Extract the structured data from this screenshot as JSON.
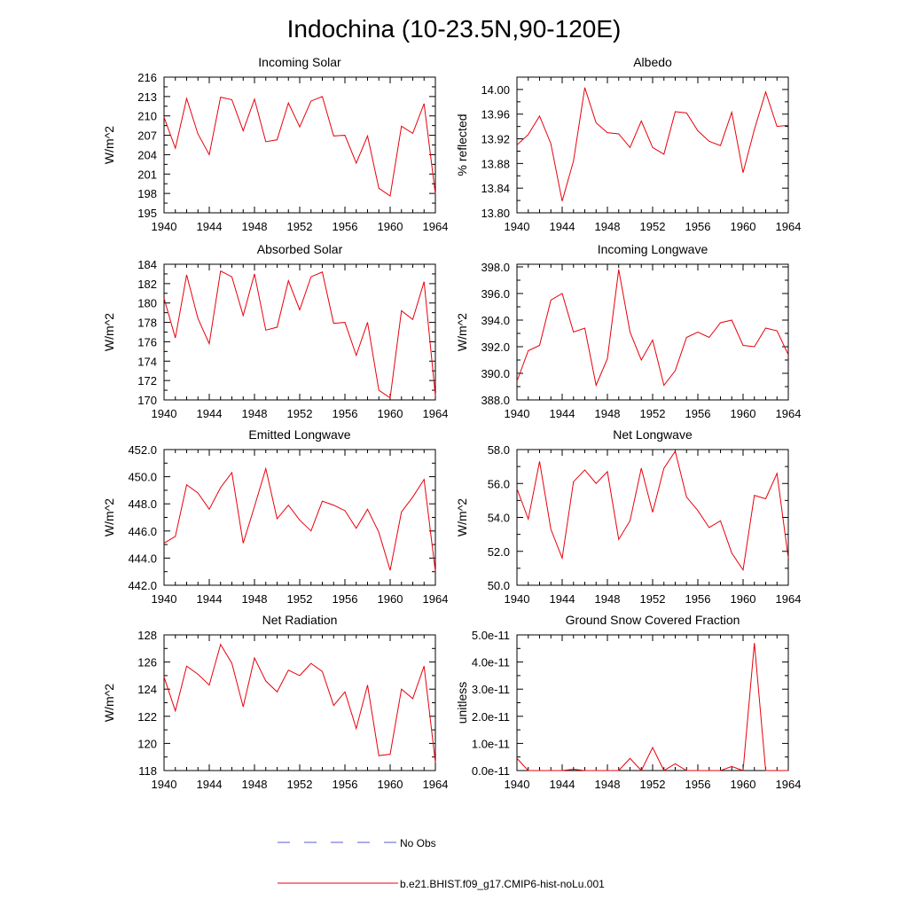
{
  "figure": {
    "title": "Indochina (10-23.5N,90-120E)",
    "legend": [
      {
        "label": "No Obs",
        "color": "#5b5bd6",
        "dashed": true
      },
      {
        "label": "b.e21.BHIST.f09_g17.CMIP6-hist-noLu.001",
        "color": "#e8000b",
        "dashed": false
      }
    ]
  },
  "chart_data": [
    {
      "type": "line",
      "title": "Incoming Solar",
      "ylabel": "W/m^2",
      "xlim": [
        1940,
        1964
      ],
      "ylim": [
        195,
        216
      ],
      "xticks": [
        "1940",
        "1944",
        "1948",
        "1952",
        "1956",
        "1960",
        "1964"
      ],
      "yticks": [
        "195",
        "198",
        "201",
        "204",
        "207",
        "210",
        "213",
        "216"
      ],
      "series": [
        {
          "color": "#e8000b",
          "x": [
            1940,
            1941,
            1942,
            1943,
            1944,
            1945,
            1946,
            1947,
            1948,
            1949,
            1950,
            1951,
            1952,
            1953,
            1954,
            1955,
            1956,
            1957,
            1958,
            1959,
            1960,
            1961,
            1962,
            1963,
            1964
          ],
          "y": [
            209.8,
            205.0,
            212.7,
            207.2,
            204.0,
            212.9,
            212.5,
            207.7,
            212.6,
            206.0,
            206.3,
            212.0,
            208.3,
            212.3,
            213.0,
            206.9,
            207.0,
            202.7,
            206.9,
            198.8,
            197.6,
            208.4,
            207.3,
            211.9,
            197.9
          ]
        }
      ]
    },
    {
      "type": "line",
      "title": "Albedo",
      "ylabel": "% reflected",
      "xlim": [
        1940,
        1964
      ],
      "ylim": [
        13.8,
        14.02
      ],
      "xticks": [
        "1940",
        "1944",
        "1948",
        "1952",
        "1956",
        "1960",
        "1964"
      ],
      "yticks": [
        "13.80",
        "13.84",
        "13.88",
        "13.92",
        "13.96",
        "14.00"
      ],
      "series": [
        {
          "color": "#e8000b",
          "x": [
            1940,
            1941,
            1942,
            1943,
            1944,
            1945,
            1946,
            1947,
            1948,
            1949,
            1950,
            1951,
            1952,
            1953,
            1954,
            1955,
            1956,
            1957,
            1958,
            1959,
            1960,
            1961,
            1962,
            1963,
            1964
          ],
          "y": [
            13.91,
            13.927,
            13.957,
            13.912,
            13.819,
            13.884,
            14.003,
            13.946,
            13.93,
            13.928,
            13.906,
            13.949,
            13.906,
            13.895,
            13.964,
            13.962,
            13.933,
            13.916,
            13.909,
            13.963,
            13.865,
            13.935,
            13.996,
            13.94,
            13.942
          ]
        }
      ]
    },
    {
      "type": "line",
      "title": "Absorbed Solar",
      "ylabel": "W/m^2",
      "xlim": [
        1940,
        1964
      ],
      "ylim": [
        170,
        184
      ],
      "xticks": [
        "1940",
        "1944",
        "1948",
        "1952",
        "1956",
        "1960",
        "1964"
      ],
      "yticks": [
        "170",
        "172",
        "174",
        "176",
        "178",
        "180",
        "182",
        "184"
      ],
      "series": [
        {
          "color": "#e8000b",
          "x": [
            1940,
            1941,
            1942,
            1943,
            1944,
            1945,
            1946,
            1947,
            1948,
            1949,
            1950,
            1951,
            1952,
            1953,
            1954,
            1955,
            1956,
            1957,
            1958,
            1959,
            1960,
            1961,
            1962,
            1963,
            1964
          ],
          "y": [
            180.5,
            176.4,
            182.9,
            178.4,
            175.8,
            183.3,
            182.7,
            178.7,
            183.0,
            177.2,
            177.5,
            182.3,
            179.3,
            182.7,
            183.2,
            177.9,
            178.0,
            174.6,
            178.0,
            171.0,
            170.2,
            179.2,
            178.3,
            182.2,
            170.4
          ]
        }
      ]
    },
    {
      "type": "line",
      "title": "Incoming Longwave",
      "ylabel": "W/m^2",
      "xlim": [
        1940,
        1964
      ],
      "ylim": [
        388.0,
        398.2
      ],
      "xticks": [
        "1940",
        "1944",
        "1948",
        "1952",
        "1956",
        "1960",
        "1964"
      ],
      "yticks": [
        "388.0",
        "390.0",
        "392.0",
        "394.0",
        "396.0",
        "398.0"
      ],
      "series": [
        {
          "color": "#e8000b",
          "x": [
            1940,
            1941,
            1942,
            1943,
            1944,
            1945,
            1946,
            1947,
            1948,
            1949,
            1950,
            1951,
            1952,
            1953,
            1954,
            1955,
            1956,
            1957,
            1958,
            1959,
            1960,
            1961,
            1962,
            1963,
            1964
          ],
          "y": [
            389.4,
            391.7,
            392.1,
            395.5,
            396.0,
            393.1,
            393.4,
            389.1,
            391.1,
            397.8,
            393.1,
            391.0,
            392.5,
            389.1,
            390.2,
            392.7,
            393.1,
            392.7,
            393.8,
            394.0,
            392.1,
            392.0,
            393.4,
            393.2,
            391.4
          ]
        }
      ]
    },
    {
      "type": "line",
      "title": "Emitted Longwave",
      "ylabel": "W/m^2",
      "xlim": [
        1940,
        1964
      ],
      "ylim": [
        442.0,
        452.0
      ],
      "xticks": [
        "1940",
        "1944",
        "1948",
        "1952",
        "1956",
        "1960",
        "1964"
      ],
      "yticks": [
        "442.0",
        "444.0",
        "446.0",
        "448.0",
        "450.0",
        "452.0"
      ],
      "series": [
        {
          "color": "#e8000b",
          "x": [
            1940,
            1941,
            1942,
            1943,
            1944,
            1945,
            1946,
            1947,
            1948,
            1949,
            1950,
            1951,
            1952,
            1953,
            1954,
            1955,
            1956,
            1957,
            1958,
            1959,
            1960,
            1961,
            1962,
            1963,
            1964
          ],
          "y": [
            445.1,
            445.6,
            449.4,
            448.8,
            447.6,
            449.2,
            450.3,
            445.1,
            447.8,
            450.6,
            446.9,
            447.9,
            446.8,
            446.0,
            448.2,
            447.9,
            447.5,
            446.2,
            447.6,
            445.9,
            443.1,
            447.4,
            448.5,
            449.8,
            443.0
          ]
        }
      ]
    },
    {
      "type": "line",
      "title": "Net Longwave",
      "ylabel": "W/m^2",
      "xlim": [
        1940,
        1964
      ],
      "ylim": [
        50.0,
        58.0
      ],
      "xticks": [
        "1940",
        "1944",
        "1948",
        "1952",
        "1956",
        "1960",
        "1964"
      ],
      "yticks": [
        "50.0",
        "52.0",
        "54.0",
        "56.0",
        "58.0"
      ],
      "series": [
        {
          "color": "#e8000b",
          "x": [
            1940,
            1941,
            1942,
            1943,
            1944,
            1945,
            1946,
            1947,
            1948,
            1949,
            1950,
            1951,
            1952,
            1953,
            1954,
            1955,
            1956,
            1957,
            1958,
            1959,
            1960,
            1961,
            1962,
            1963,
            1964
          ],
          "y": [
            55.7,
            53.9,
            57.3,
            53.3,
            51.6,
            56.1,
            56.8,
            56.0,
            56.7,
            52.7,
            53.8,
            56.9,
            54.3,
            56.9,
            57.9,
            55.2,
            54.4,
            53.4,
            53.8,
            51.9,
            50.9,
            55.3,
            55.1,
            56.6,
            51.6
          ]
        }
      ]
    },
    {
      "type": "line",
      "title": "Net Radiation",
      "ylabel": "W/m^2",
      "xlim": [
        1940,
        1964
      ],
      "ylim": [
        118,
        128
      ],
      "xticks": [
        "1940",
        "1944",
        "1948",
        "1952",
        "1956",
        "1960",
        "1964"
      ],
      "yticks": [
        "118",
        "120",
        "122",
        "124",
        "126",
        "128"
      ],
      "series": [
        {
          "color": "#e8000b",
          "x": [
            1940,
            1941,
            1942,
            1943,
            1944,
            1945,
            1946,
            1947,
            1948,
            1949,
            1950,
            1951,
            1952,
            1953,
            1954,
            1955,
            1956,
            1957,
            1958,
            1959,
            1960,
            1961,
            1962,
            1963,
            1964
          ],
          "y": [
            124.9,
            122.4,
            125.7,
            125.1,
            124.3,
            127.3,
            125.9,
            122.7,
            126.3,
            124.6,
            123.8,
            125.4,
            125.0,
            125.9,
            125.3,
            122.8,
            123.8,
            121.1,
            124.3,
            119.1,
            119.2,
            124.0,
            123.3,
            125.7,
            118.6
          ]
        }
      ]
    },
    {
      "type": "line",
      "title": "Ground Snow Covered Fraction",
      "ylabel": "unitless",
      "xlim": [
        1940,
        1964
      ],
      "ylim": [
        0,
        5e-11
      ],
      "xticks": [
        "1940",
        "1944",
        "1948",
        "1952",
        "1956",
        "1960",
        "1964"
      ],
      "yticks": [
        "0.0e-11",
        "1.0e-11",
        "2.0e-11",
        "3.0e-11",
        "4.0e-11",
        "5.0e-11"
      ],
      "series": [
        {
          "color": "#e8000b",
          "x": [
            1940,
            1941,
            1942,
            1943,
            1944,
            1945,
            1946,
            1947,
            1948,
            1949,
            1950,
            1951,
            1952,
            1953,
            1954,
            1955,
            1956,
            1957,
            1958,
            1959,
            1960,
            1961,
            1962,
            1963,
            1964
          ],
          "y": [
            4.5e-12,
            0,
            0,
            0,
            0,
            5e-13,
            0,
            0,
            0,
            0,
            4.5e-12,
            0,
            8.5e-12,
            0,
            2.5e-12,
            0,
            0,
            0,
            0,
            1.5e-12,
            0,
            4.7e-11,
            0,
            0,
            0
          ]
        }
      ]
    }
  ]
}
